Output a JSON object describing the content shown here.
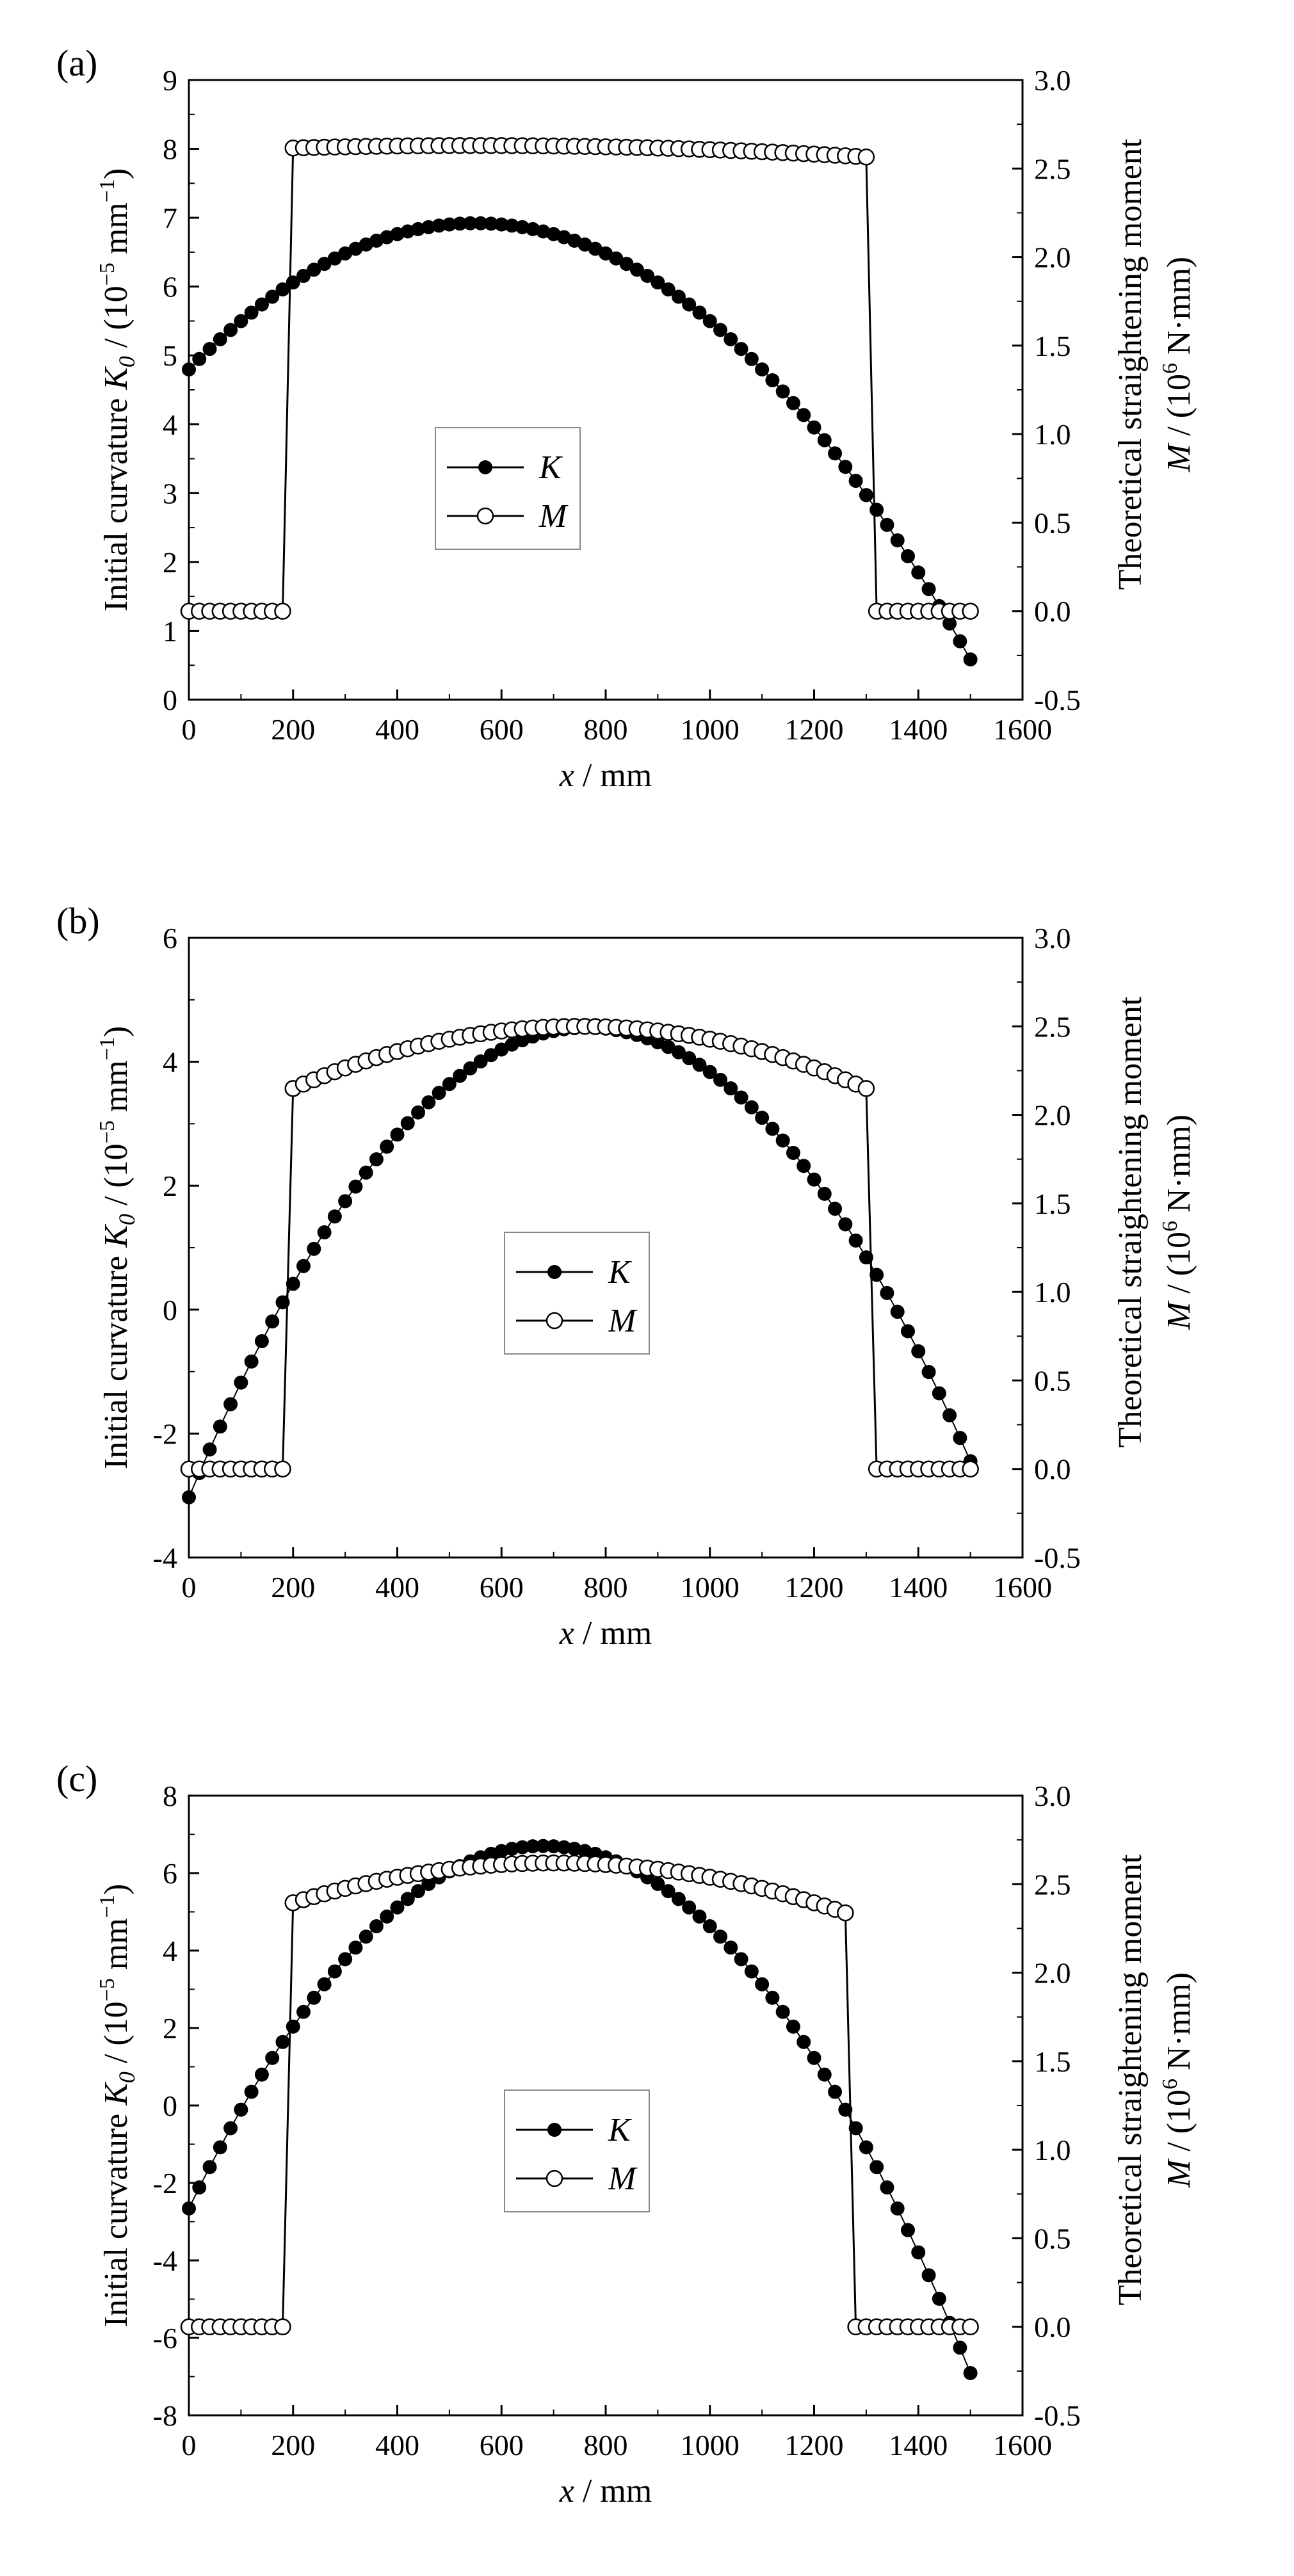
{
  "figure": {
    "panels": [
      {
        "label": "(a)"
      },
      {
        "label": "(b)"
      },
      {
        "label": "(c)"
      }
    ]
  },
  "chart_data": [
    {
      "panel": "(a)",
      "type": "scatter",
      "title": "",
      "xlabel_var": "x",
      "xlabel_unit": " / mm",
      "ylabel_left_pre": "Initial curvature ",
      "ylabel_left_var": "K",
      "ylabel_left_sub": "0",
      "ylabel_left_post": " / (10",
      "ylabel_left_exp": "−5",
      "ylabel_left_unit": " mm",
      "ylabel_left_exp2": "−1",
      "ylabel_left_close": ")",
      "ylabel_right_top": "Theoretical straightening moment",
      "ylabel_right_var": "M",
      "ylabel_right_post": " / (10",
      "ylabel_right_exp": "6",
      "ylabel_right_unit": " N·mm)",
      "xlim": [
        0,
        1600
      ],
      "xticks": [
        "0",
        "200",
        "400",
        "600",
        "800",
        "1000",
        "1200",
        "1400",
        "1600"
      ],
      "ylim_left": [
        0,
        9
      ],
      "yticks_left": [
        "0",
        "1",
        "2",
        "3",
        "4",
        "5",
        "6",
        "7",
        "8",
        "9"
      ],
      "ylim_right": [
        -0.5,
        3.0
      ],
      "yticks_right": [
        "-0.5",
        "0.0",
        "0.5",
        "1.0",
        "1.5",
        "2.0",
        "2.5",
        "3.0"
      ],
      "legend": {
        "position": "center-left",
        "entries": [
          "K",
          "M"
        ]
      },
      "series": [
        {
          "name": "K",
          "axis": "left",
          "marker": "filled-circle",
          "x_start": 0,
          "x_step": 20,
          "count": 76,
          "curve": {
            "type": "quadratic",
            "vertex_x": 550,
            "vertex_y": 6.92,
            "a": -7.02e-06
          }
        },
        {
          "name": "M",
          "axis": "right",
          "marker": "open-circle",
          "segments": [
            {
              "x_start": 0,
              "x_end": 180,
              "x_step": 20,
              "curve": {
                "type": "constant",
                "value": 0.0
              }
            },
            {
              "x_start": 200,
              "x_end": 1300,
              "x_step": 20,
              "curve": {
                "type": "quadratic",
                "vertex_x": 550,
                "vertex_y": 2.63,
                "a": -1.15e-07
              }
            },
            {
              "x_start": 1320,
              "x_end": 1500,
              "x_step": 20,
              "curve": {
                "type": "constant",
                "value": 0.0
              }
            }
          ]
        }
      ]
    },
    {
      "panel": "(b)",
      "type": "scatter",
      "title": "",
      "xlabel_var": "x",
      "xlabel_unit": " / mm",
      "ylabel_left_pre": "Initial curvature  ",
      "ylabel_left_var": "K",
      "ylabel_left_sub": "0",
      "ylabel_left_post": " / (10",
      "ylabel_left_exp": "−5",
      "ylabel_left_unit": " mm",
      "ylabel_left_exp2": "−1",
      "ylabel_left_close": ")",
      "ylabel_right_top": "Theoretical straightening moment",
      "ylabel_right_var": "M",
      "ylabel_right_post": " / (10",
      "ylabel_right_exp": "6",
      "ylabel_right_unit": " N·mm)",
      "xlim": [
        0,
        1600
      ],
      "xticks": [
        "0",
        "200",
        "400",
        "600",
        "800",
        "1000",
        "1200",
        "1400",
        "1600"
      ],
      "ylim_left": [
        -4,
        6
      ],
      "yticks_left": [
        "-4",
        "-2",
        "0",
        "2",
        "4",
        "6"
      ],
      "ylim_right": [
        -0.5,
        3.0
      ],
      "yticks_right": [
        "-0.5",
        "0.0",
        "0.5",
        "1.0",
        "1.5",
        "2.0",
        "2.5",
        "3.0"
      ],
      "legend": {
        "position": "center",
        "entries": [
          "K",
          "M"
        ]
      },
      "series": [
        {
          "name": "K",
          "axis": "left",
          "marker": "filled-circle",
          "x_start": 0,
          "x_step": 20,
          "count": 76,
          "curve": {
            "type": "quadratic",
            "vertex_x": 765,
            "vertex_y": 4.55,
            "a": -1.295e-05
          }
        },
        {
          "name": "M",
          "axis": "right",
          "marker": "open-circle",
          "segments": [
            {
              "x_start": 0,
              "x_end": 180,
              "x_step": 20,
              "curve": {
                "type": "constant",
                "value": 0.0
              }
            },
            {
              "x_start": 200,
              "x_end": 1300,
              "x_step": 20,
              "curve": {
                "type": "quadratic",
                "vertex_x": 750,
                "vertex_y": 2.5,
                "a": -1.16e-06
              }
            },
            {
              "x_start": 1320,
              "x_end": 1500,
              "x_step": 20,
              "curve": {
                "type": "constant",
                "value": 0.0
              }
            }
          ]
        }
      ]
    },
    {
      "panel": "(c)",
      "type": "scatter",
      "title": "",
      "xlabel_var": "x",
      "xlabel_unit": " / mm",
      "ylabel_left_pre": "Initial curvature ",
      "ylabel_left_var": "K",
      "ylabel_left_sub": "0",
      "ylabel_left_post": " / (10",
      "ylabel_left_exp": "−5",
      "ylabel_left_unit": " mm",
      "ylabel_left_exp2": "−1",
      "ylabel_left_close": ")",
      "ylabel_right_top": "Theoretical straightening moment",
      "ylabel_right_var": "M",
      "ylabel_right_post": " / (10",
      "ylabel_right_exp": "6",
      "ylabel_right_unit": " N·mm)",
      "xlim": [
        0,
        1600
      ],
      "xticks": [
        "0",
        "200",
        "400",
        "600",
        "800",
        "1000",
        "1200",
        "1400",
        "1600"
      ],
      "ylim_left": [
        -8,
        8
      ],
      "yticks_left": [
        "-8",
        "-6",
        "-4",
        "-2",
        "0",
        "2",
        "4",
        "6",
        "8"
      ],
      "ylim_right": [
        -0.5,
        3.0
      ],
      "yticks_right": [
        "-0.5",
        "0.0",
        "0.5",
        "1.0",
        "1.5",
        "2.0",
        "2.5",
        "3.0"
      ],
      "legend": {
        "position": "center",
        "entries": [
          "K",
          "M"
        ]
      },
      "series": [
        {
          "name": "K",
          "axis": "left",
          "marker": "filled-circle",
          "x_start": 0,
          "x_step": 20,
          "count": 76,
          "curve": {
            "type": "quadratic",
            "vertex_x": 680,
            "vertex_y": 6.7,
            "a": -2.024e-05
          }
        },
        {
          "name": "M",
          "axis": "right",
          "marker": "open-circle",
          "segments": [
            {
              "x_start": 0,
              "x_end": 180,
              "x_step": 20,
              "curve": {
                "type": "constant",
                "value": 0.0
              }
            },
            {
              "x_start": 200,
              "x_end": 1260,
              "x_step": 20,
              "curve": {
                "type": "quadratic",
                "vertex_x": 700,
                "vertex_y": 2.62,
                "a": -9e-07
              }
            },
            {
              "x_start": 1280,
              "x_end": 1500,
              "x_step": 20,
              "curve": {
                "type": "constant",
                "value": 0.0
              }
            }
          ]
        }
      ]
    }
  ]
}
